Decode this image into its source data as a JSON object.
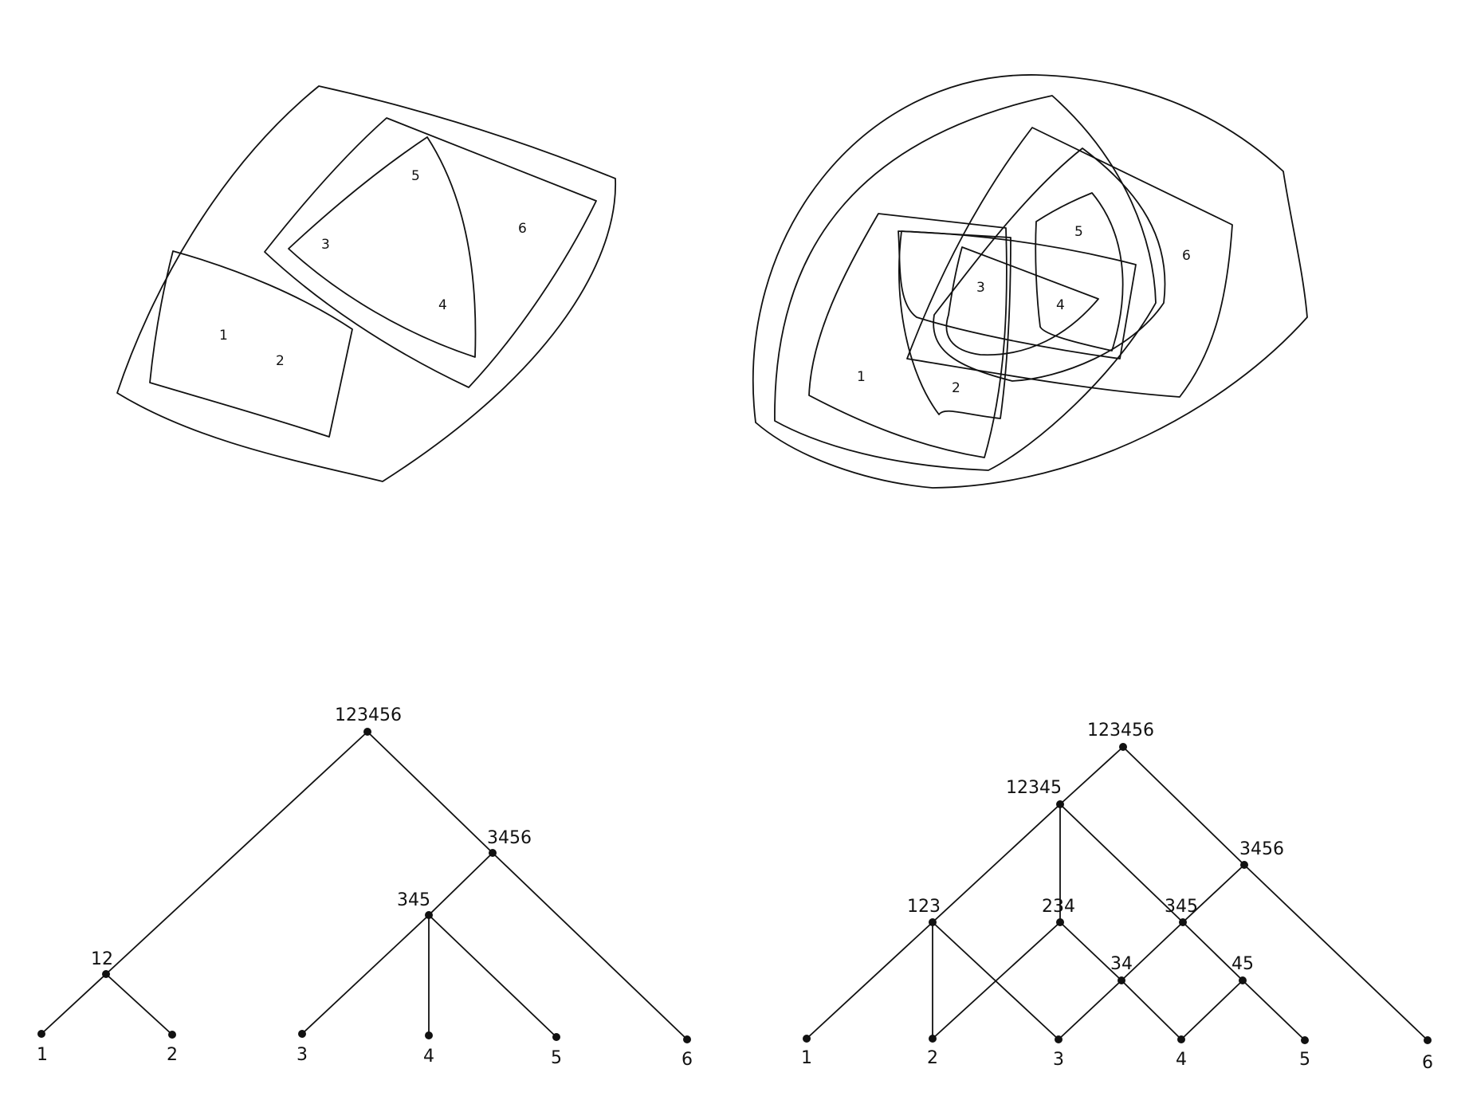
{
  "diagram_a": {
    "regions": [
      "1",
      "2",
      "3",
      "4",
      "5",
      "6"
    ]
  },
  "diagram_b": {
    "regions": [
      "1",
      "2",
      "3",
      "4",
      "5",
      "6"
    ]
  },
  "tree_a": {
    "nodes": [
      "123456",
      "3456",
      "345",
      "12",
      "1",
      "2",
      "3",
      "4",
      "5",
      "6"
    ]
  },
  "tree_b": {
    "nodes": [
      "123456",
      "12345",
      "3456",
      "123",
      "234",
      "345",
      "34",
      "45",
      "1",
      "2",
      "3",
      "4",
      "5",
      "6"
    ]
  },
  "colors": {
    "ink": "#111111",
    "paper": "#ffffff"
  }
}
